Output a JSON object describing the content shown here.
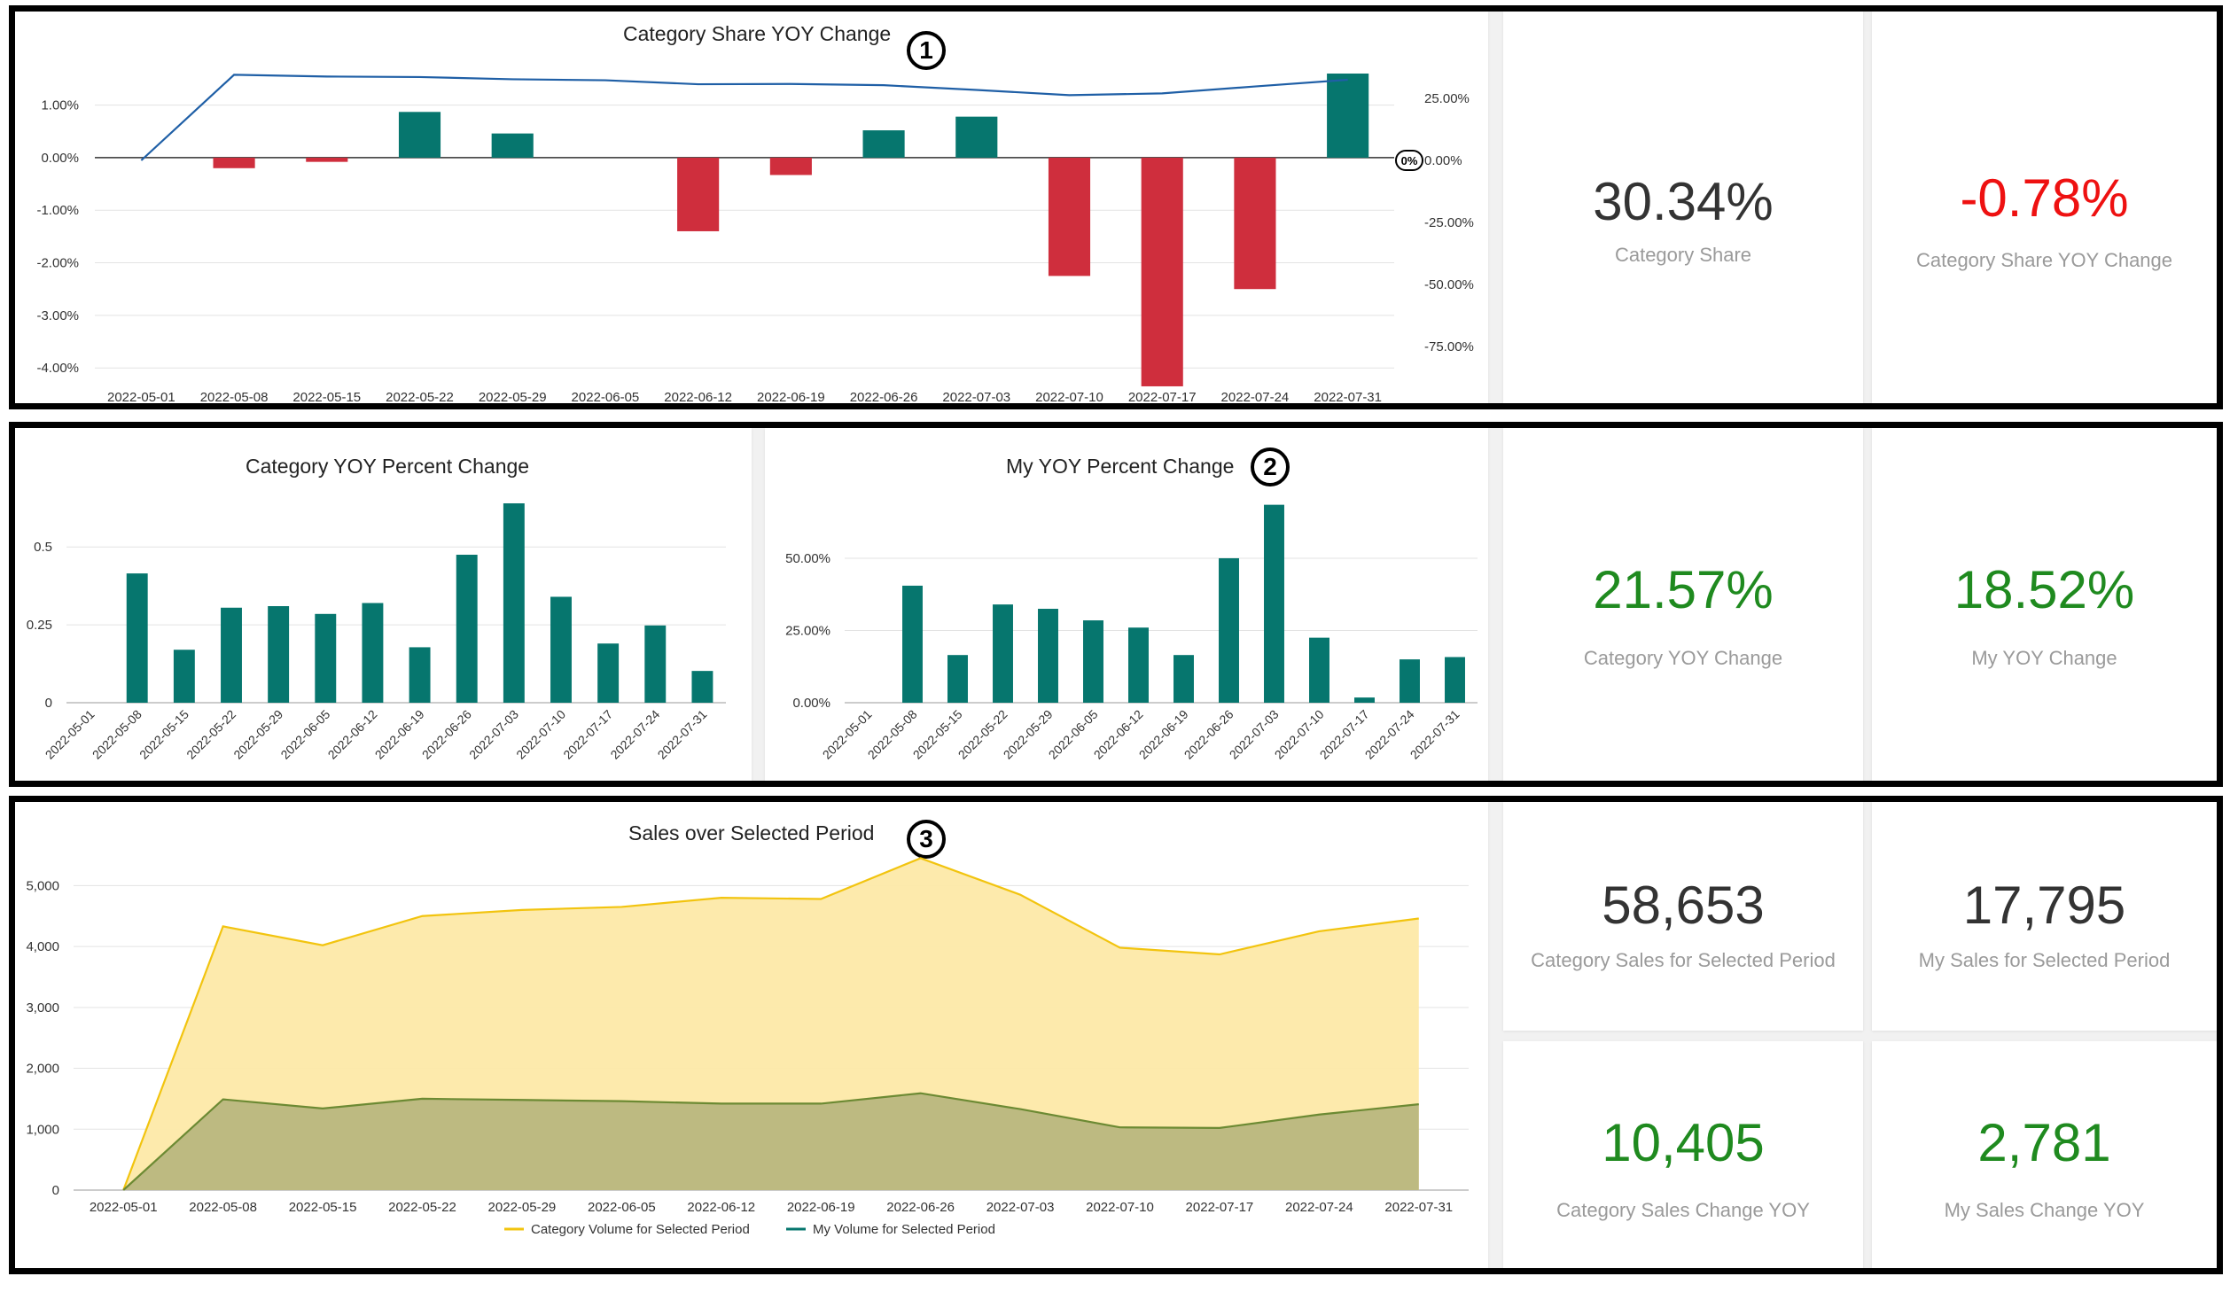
{
  "colors": {
    "teal": "#06766e",
    "red": "#cf2e3d",
    "navy": "#1f5fa6",
    "yellow": "#f2c40f",
    "yellow_fill": "#fde9a8",
    "olive": "#6c8a33",
    "olive_fill": "#b9b77e",
    "green": "#1f8a1f",
    "negative": "#ee1111",
    "neutral": "#333333"
  },
  "markers": [
    "1",
    "2",
    "3"
  ],
  "kpis": {
    "category_share": {
      "value": "30.34%",
      "label": "Category Share"
    },
    "category_share_yoy": {
      "value": "-0.78%",
      "label": "Category Share YOY Change"
    },
    "category_yoy": {
      "value": "21.57%",
      "label": "Category YOY Change"
    },
    "my_yoy": {
      "value": "18.52%",
      "label": "My YOY Change"
    },
    "category_sales": {
      "value": "58,653",
      "label": "Category Sales for Selected Period"
    },
    "my_sales": {
      "value": "17,795",
      "label": "My Sales for Selected Period"
    },
    "category_sales_change": {
      "value": "10,405",
      "label": "Category Sales Change YOY"
    },
    "my_sales_change": {
      "value": "2,781",
      "label": "My Sales Change YOY"
    }
  },
  "chart_data": [
    {
      "id": "share",
      "type": "bar",
      "title": "Category Share YOY Change",
      "categories": [
        "2022-05-01",
        "2022-05-08",
        "2022-05-15",
        "2022-05-22",
        "2022-05-29",
        "2022-06-05",
        "2022-06-12",
        "2022-06-19",
        "2022-06-26",
        "2022-07-03",
        "2022-07-10",
        "2022-07-17",
        "2022-07-24",
        "2022-07-31"
      ],
      "series": [
        {
          "axis": "left",
          "kind": "bar",
          "values": [
            0,
            -0.2,
            -0.08,
            0.87,
            0.46,
            0,
            -1.4,
            -0.33,
            0.52,
            0.78,
            -2.25,
            -4.35,
            -2.5,
            1.6
          ]
        },
        {
          "axis": "right",
          "kind": "line",
          "values": [
            0,
            34.5,
            33.8,
            33.6,
            32.7,
            32.3,
            30.7,
            30.8,
            30.3,
            28.4,
            26.3,
            27,
            29.8,
            32.5
          ]
        }
      ],
      "ylim": [
        -4.3,
        1.6
      ],
      "yticks": [
        {
          "v": 1,
          "label": "1.00%"
        },
        {
          "v": 0,
          "label": "0.00%"
        },
        {
          "v": -1,
          "label": "-1.00%"
        },
        {
          "v": -2,
          "label": "-2.00%"
        },
        {
          "v": -3,
          "label": "-3.00%"
        },
        {
          "v": -4,
          "label": "-4.00%"
        }
      ],
      "y2lim": [
        -90,
        35
      ],
      "y2ticks": [
        {
          "v": 25,
          "label": "25.00%"
        },
        {
          "v": 0,
          "label": "0.00%"
        },
        {
          "v": -25,
          "label": "-25.00%"
        },
        {
          "v": -50,
          "label": "-50.00%"
        },
        {
          "v": -75,
          "label": "-75.00%"
        }
      ],
      "annotation": "0%",
      "grid": true
    },
    {
      "id": "cat_yoy",
      "type": "bar",
      "title": "Category YOY Percent Change",
      "categories": [
        "2022-05-01",
        "2022-05-08",
        "2022-05-15",
        "2022-05-22",
        "2022-05-29",
        "2022-06-05",
        "2022-06-12",
        "2022-06-19",
        "2022-06-26",
        "2022-07-03",
        "2022-07-10",
        "2022-07-17",
        "2022-07-24",
        "2022-07-31"
      ],
      "values": [
        0,
        0.415,
        0.17,
        0.305,
        0.31,
        0.285,
        0.32,
        0.178,
        0.475,
        0.64,
        0.34,
        0.19,
        0.248,
        0.102
      ],
      "ylim": [
        0,
        0.64
      ],
      "yticks": [
        {
          "v": 0.5,
          "label": "0.5"
        },
        {
          "v": 0.25,
          "label": "0.25"
        },
        {
          "v": 0,
          "label": "0"
        }
      ],
      "grid": true
    },
    {
      "id": "my_yoy",
      "type": "bar",
      "title": "My YOY Percent Change",
      "categories": [
        "2022-05-01",
        "2022-05-08",
        "2022-05-15",
        "2022-05-22",
        "2022-05-29",
        "2022-06-05",
        "2022-06-12",
        "2022-06-19",
        "2022-06-26",
        "2022-07-03",
        "2022-07-10",
        "2022-07-17",
        "2022-07-24",
        "2022-07-31"
      ],
      "values": [
        0,
        40.5,
        16.5,
        34,
        32.5,
        28.5,
        26,
        16.5,
        50,
        68.5,
        22.5,
        1.8,
        15,
        15.8
      ],
      "ylim": [
        0,
        69
      ],
      "yticks": [
        {
          "v": 50,
          "label": "50.00%"
        },
        {
          "v": 25,
          "label": "25.00%"
        },
        {
          "v": 0,
          "label": "0.00%"
        }
      ],
      "grid": true
    },
    {
      "id": "sales",
      "type": "area",
      "title": "Sales over Selected Period",
      "categories": [
        "2022-05-01",
        "2022-05-08",
        "2022-05-15",
        "2022-05-22",
        "2022-05-29",
        "2022-06-05",
        "2022-06-12",
        "2022-06-19",
        "2022-06-26",
        "2022-07-03",
        "2022-07-10",
        "2022-07-17",
        "2022-07-24",
        "2022-07-31"
      ],
      "series": [
        {
          "name": "Category Volume for Selected Period",
          "values": [
            0,
            4330,
            4020,
            4500,
            4600,
            4650,
            4800,
            4780,
            5450,
            4850,
            3980,
            3870,
            4250,
            4460
          ]
        },
        {
          "name": "My Volume for Selected Period",
          "values": [
            0,
            1490,
            1340,
            1500,
            1480,
            1460,
            1420,
            1420,
            1590,
            1330,
            1030,
            1020,
            1240,
            1410
          ]
        }
      ],
      "ylim": [
        0,
        5500
      ],
      "yticks": [
        {
          "v": 5000,
          "label": "5,000"
        },
        {
          "v": 4000,
          "label": "4,000"
        },
        {
          "v": 3000,
          "label": "3,000"
        },
        {
          "v": 2000,
          "label": "2,000"
        },
        {
          "v": 1000,
          "label": "1,000"
        },
        {
          "v": 0,
          "label": "0"
        }
      ],
      "legend": "bottom",
      "grid": true
    }
  ]
}
